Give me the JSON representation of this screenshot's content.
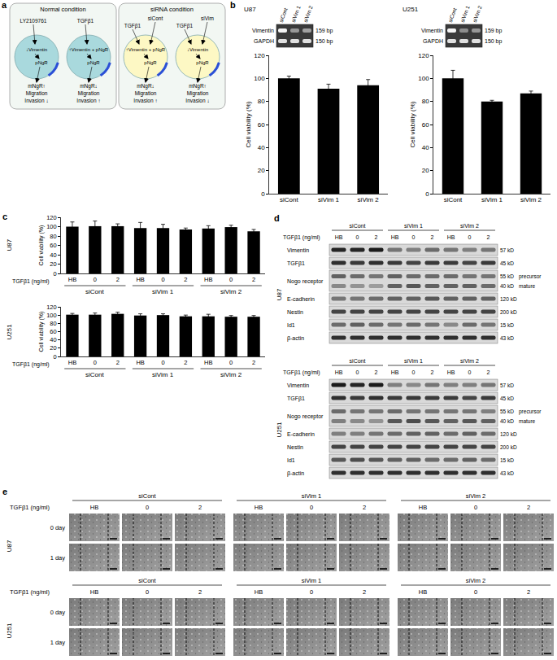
{
  "panel_labels": [
    "a",
    "b",
    "c",
    "d",
    "e"
  ],
  "diagram": {
    "boxes": [
      {
        "title": "Normal condition",
        "color": "#a9d9dd",
        "cells": [
          {
            "inputs": [
              "LY2109761"
            ],
            "inside": [
              "↓Vimentin",
              "pNgR"
            ],
            "below": [
              "mNgR↑",
              "Migration",
              "Invasion ↓"
            ]
          },
          {
            "inputs": [
              "TGFβ1"
            ],
            "inside": [
              "↑Vimentin + pNgR",
              "pNgR"
            ],
            "below": [
              "mNgR↓",
              "Migration",
              "Invasion ↑"
            ]
          }
        ]
      },
      {
        "title": "siRNA condition",
        "color": "#fdf8c4",
        "cells": [
          {
            "inputs": [
              "TGFβ1",
              "siCont"
            ],
            "inside": [
              "↑Vimentin + pNgR",
              "pNgR"
            ],
            "below": [
              "mNgR↓",
              "Migration",
              "Invasion ↑"
            ]
          },
          {
            "inputs": [
              "TGFβ1",
              "siVim"
            ],
            "inside": [
              "↓Vimentin",
              "pNgR"
            ],
            "below": [
              "mNgR↑",
              "Migration",
              "Invasion ↓"
            ]
          }
        ]
      }
    ]
  },
  "gels": [
    {
      "title": "U87",
      "lanes": [
        "siCont",
        "siVim 1",
        "siVim 2"
      ],
      "rows": [
        {
          "name": "Vimentin",
          "size": "159 bp",
          "intensity": [
            1,
            0.5,
            0.55
          ]
        },
        {
          "name": "GAPDH",
          "size": "150 bp",
          "intensity": [
            0.9,
            0.9,
            0.9
          ]
        }
      ]
    },
    {
      "title": "U251",
      "lanes": [
        "siCont",
        "siVim 1",
        "siVim 2"
      ],
      "rows": [
        {
          "name": "Vimentin",
          "size": "159 bp",
          "intensity": [
            1,
            0.45,
            0.5
          ]
        },
        {
          "name": "GAPDH",
          "size": "150 bp",
          "intensity": [
            0.9,
            0.9,
            0.9
          ]
        }
      ]
    }
  ],
  "chart_data": [
    {
      "type": "bar",
      "categories": [
        "siCont",
        "siVim 1",
        "siVim 2"
      ],
      "values": [
        100,
        91,
        94
      ],
      "errors": [
        2,
        4,
        5
      ],
      "y_label": "Cell viability (%)",
      "ylim": [
        0,
        120
      ],
      "yticks": [
        0,
        20,
        40,
        60,
        80,
        100,
        120
      ],
      "color": "#000000",
      "grid": false
    },
    {
      "type": "bar",
      "categories": [
        "siCont",
        "siVim 1",
        "siVim 2"
      ],
      "values": [
        100,
        80,
        87
      ],
      "errors": [
        7,
        1,
        2
      ],
      "y_label": "Cell viability (%)",
      "ylim": [
        0,
        120
      ],
      "yticks": [
        0,
        20,
        40,
        60,
        80,
        100,
        120
      ],
      "color": "#000000",
      "grid": false
    },
    {
      "type": "bar",
      "title": "U87",
      "x_label": "TGFβ1 (ng/ml)",
      "groups": [
        "siCont",
        "siVim 1",
        "siVim 2"
      ],
      "categories": [
        "HB",
        "0",
        "2",
        "HB",
        "0",
        "2",
        "HB",
        "0",
        "2"
      ],
      "values": [
        100,
        101,
        101,
        97,
        97,
        94,
        96,
        99,
        90
      ],
      "errors": [
        10,
        11,
        5,
        12,
        8,
        3,
        6,
        4,
        4
      ],
      "y_label": "Cell viability (%)",
      "ylim": [
        0,
        120
      ],
      "yticks": [
        0,
        20,
        40,
        60,
        80,
        100,
        120
      ],
      "color": "#000000",
      "grid": false
    },
    {
      "type": "bar",
      "title": "U251",
      "x_label": "TGFβ1 (ng/ml)",
      "groups": [
        "siCont",
        "siVim 1",
        "siVim 2"
      ],
      "categories": [
        "HB",
        "0",
        "2",
        "HB",
        "0",
        "2",
        "HB",
        "0",
        "2"
      ],
      "values": [
        101,
        101,
        103,
        99,
        100,
        97,
        97,
        96,
        96
      ],
      "errors": [
        3,
        4,
        4,
        4,
        3,
        3,
        5,
        3,
        3
      ],
      "y_label": "Cell viability (%)",
      "ylim": [
        0,
        120
      ],
      "yticks": [
        0,
        20,
        40,
        60,
        80,
        100,
        120
      ],
      "color": "#000000",
      "grid": false
    }
  ],
  "blots": {
    "header_label": "TGFβ1 (ng/ml)",
    "groups": [
      "siCont",
      "siVim 1",
      "siVim 2"
    ],
    "lanes": [
      "HB",
      "0",
      "2"
    ],
    "cells": [
      {
        "title": "U87",
        "rows": [
          {
            "name": "Vimentin",
            "bands": [
              {
                "size": "57 kD",
                "intensity": [
                  0.9,
                  0.9,
                  0.95,
                  0.5,
                  0.45,
                  0.55,
                  0.5,
                  0.45,
                  0.5
                ]
              }
            ]
          },
          {
            "name": "TGFβ1",
            "bands": [
              {
                "size": "45 kD",
                "intensity": [
                  0.85,
                  0.8,
                  0.85,
                  0.8,
                  0.75,
                  0.8,
                  0.8,
                  0.75,
                  0.8
                ]
              }
            ]
          },
          {
            "name": "Nogo receptor",
            "bands": [
              {
                "size": "55 kD",
                "label": "precursor",
                "intensity": [
                  0.6,
                  0.55,
                  0.5,
                  0.6,
                  0.55,
                  0.55,
                  0.55,
                  0.5,
                  0.5
                ]
              },
              {
                "size": "40 kD",
                "label": "mature",
                "intensity": [
                  0.4,
                  0.35,
                  0.3,
                  0.6,
                  0.65,
                  0.6,
                  0.6,
                  0.6,
                  0.55
                ]
              }
            ]
          },
          {
            "name": "E-cadherin",
            "bands": [
              {
                "size": "120 kD",
                "intensity": [
                  0.5,
                  0.5,
                  0.55,
                  0.6,
                  0.6,
                  0.65,
                  0.6,
                  0.6,
                  0.6
                ]
              }
            ]
          },
          {
            "name": "Nestin",
            "bands": [
              {
                "size": "200 kD",
                "intensity": [
                  0.75,
                  0.75,
                  0.75,
                  0.75,
                  0.75,
                  0.75,
                  0.75,
                  0.75,
                  0.75
                ]
              }
            ]
          },
          {
            "name": "Id1",
            "bands": [
              {
                "size": "15 kD",
                "intensity": [
                  0.55,
                  0.6,
                  0.55,
                  0.5,
                  0.55,
                  0.5,
                  0.4,
                  0.55,
                  0.5
                ]
              }
            ]
          },
          {
            "name": "β-actin",
            "bands": [
              {
                "size": "43 kD",
                "intensity": [
                  0.85,
                  0.85,
                  0.85,
                  0.85,
                  0.85,
                  0.85,
                  0.85,
                  0.85,
                  0.85
                ]
              }
            ]
          }
        ]
      },
      {
        "title": "U251",
        "rows": [
          {
            "name": "Vimentin",
            "bands": [
              {
                "size": "57 kD",
                "intensity": [
                  0.95,
                  0.9,
                  0.95,
                  0.45,
                  0.4,
                  0.5,
                  0.45,
                  0.45,
                  0.5
                ]
              }
            ]
          },
          {
            "name": "TGFβ1",
            "bands": [
              {
                "size": "45 kD",
                "intensity": [
                  0.85,
                  0.8,
                  0.85,
                  0.8,
                  0.8,
                  0.8,
                  0.8,
                  0.75,
                  0.8
                ]
              }
            ]
          },
          {
            "name": "Nogo receptor",
            "bands": [
              {
                "size": "55 kD",
                "label": "precursor",
                "intensity": [
                  0.55,
                  0.5,
                  0.5,
                  0.55,
                  0.5,
                  0.5,
                  0.5,
                  0.5,
                  0.45
                ]
              },
              {
                "size": "40 kD",
                "label": "mature",
                "intensity": [
                  0.45,
                  0.4,
                  0.35,
                  0.65,
                  0.7,
                  0.65,
                  0.6,
                  0.65,
                  0.6
                ]
              }
            ]
          },
          {
            "name": "E-cadherin",
            "bands": [
              {
                "size": "120 kD",
                "intensity": [
                  0.45,
                  0.45,
                  0.5,
                  0.55,
                  0.6,
                  0.6,
                  0.55,
                  0.6,
                  0.55
                ]
              }
            ]
          },
          {
            "name": "Nestin",
            "bands": [
              {
                "size": "200 kD",
                "intensity": [
                  0.75,
                  0.75,
                  0.75,
                  0.75,
                  0.75,
                  0.75,
                  0.75,
                  0.75,
                  0.75
                ]
              }
            ]
          },
          {
            "name": "Id1",
            "bands": [
              {
                "size": "15 kD",
                "intensity": [
                  0.65,
                  0.7,
                  0.65,
                  0.6,
                  0.6,
                  0.55,
                  0.55,
                  0.6,
                  0.55
                ]
              }
            ]
          },
          {
            "name": "β-actin",
            "bands": [
              {
                "size": "43 kD",
                "intensity": [
                  0.85,
                  0.85,
                  0.85,
                  0.85,
                  0.85,
                  0.85,
                  0.85,
                  0.85,
                  0.85
                ]
              }
            ]
          }
        ]
      }
    ]
  },
  "migration": {
    "header_label": "TGFβ1 (ng/ml)",
    "groups": [
      "siCont",
      "siVim 1",
      "siVim 2"
    ],
    "lanes": [
      "HB",
      "0",
      "2"
    ],
    "cells": [
      {
        "title": "U87",
        "rows": [
          "0 day",
          "1 day"
        ]
      },
      {
        "title": "U251",
        "rows": [
          "0 day",
          "1 day"
        ]
      }
    ]
  }
}
